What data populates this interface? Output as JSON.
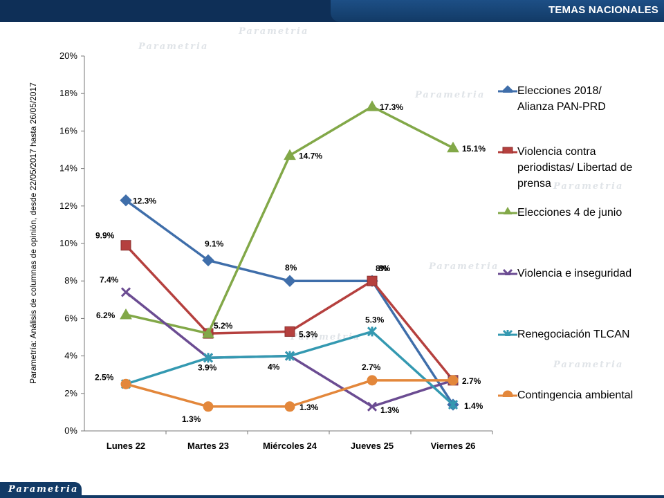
{
  "header": {
    "title": "TEMAS NACIONALES"
  },
  "branding": {
    "logo_text": "Parametria"
  },
  "side_note": "Parametría: Análisis de columnas de opinión, desde 22/05/2017 hasta 26/05/2017",
  "colors": {
    "header_bg": "#0e2f57",
    "header_tab": "#1d4f86"
  },
  "chart_data": {
    "type": "line",
    "categories": [
      "Lunes 22",
      "Martes 23",
      "Miércoles 24",
      "Jueves 25",
      "Viernes 26"
    ],
    "ylim": [
      0,
      20
    ],
    "yticks": [
      "0%",
      "2%",
      "4%",
      "6%",
      "8%",
      "10%",
      "12%",
      "14%",
      "16%",
      "18%",
      "20%"
    ],
    "grid": false,
    "legend_position": "right",
    "series": [
      {
        "name": "Elecciones 2018/ Alianza PAN-PRD",
        "name_lines": [
          "Elecciones 2018/",
          "Alianza PAN-PRD"
        ],
        "color": "#3f6eaa",
        "marker": "diamond",
        "values": [
          12.3,
          9.1,
          8,
          8,
          1.4
        ],
        "labels": [
          "12.3%",
          "9.1%",
          "8%",
          "8%",
          ""
        ]
      },
      {
        "name": "Violencia contra periodistas/ Libertad de prensa",
        "name_lines": [
          "Violencia contra",
          "periodistas/ Libertad de",
          "prensa"
        ],
        "color": "#b5403e",
        "marker": "square",
        "values": [
          9.9,
          5.2,
          5.3,
          8,
          2.7
        ],
        "labels": [
          "9.9%",
          "5.2%",
          "5.3%",
          "8%",
          "2.7%"
        ]
      },
      {
        "name": "Elecciones 4 de junio",
        "name_lines": [
          "Elecciones 4 de junio"
        ],
        "color": "#82a848",
        "marker": "triangle",
        "values": [
          6.2,
          5.2,
          14.7,
          17.3,
          15.1
        ],
        "labels": [
          "6.2%",
          "",
          "14.7%",
          "17.3%",
          "15.1%"
        ]
      },
      {
        "name": "Violencia e inseguridad",
        "name_lines": [
          "Violencia e inseguridad"
        ],
        "color": "#6b4c92",
        "marker": "x",
        "values": [
          7.4,
          3.9,
          4,
          1.3,
          2.7
        ],
        "labels": [
          "7.4%",
          "",
          "",
          "1.3%",
          ""
        ]
      },
      {
        "name": "Renegociación TLCAN",
        "name_lines": [
          "Renegociación TLCAN"
        ],
        "color": "#3499b1",
        "marker": "star",
        "values": [
          2.5,
          3.9,
          4,
          5.3,
          1.4
        ],
        "labels": [
          "2.5%",
          "3.9%",
          "4%",
          "5.3%",
          "1.4%"
        ]
      },
      {
        "name": "Contingencia ambiental",
        "name_lines": [
          "Contingencia ambiental"
        ],
        "color": "#e3873b",
        "marker": "circle",
        "values": [
          2.5,
          1.3,
          1.3,
          2.7,
          2.7
        ],
        "labels": [
          "",
          "1.3%",
          "1.3%",
          "2.7%",
          ""
        ]
      }
    ]
  }
}
